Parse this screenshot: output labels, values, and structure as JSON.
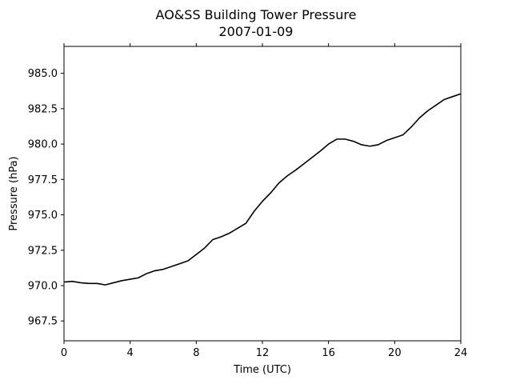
{
  "chart_data": {
    "type": "line",
    "title": "AO&SS Building Tower Pressure",
    "subtitle": "2007-01-09",
    "xlabel": "Time (UTC)",
    "ylabel": "Pressure (hPa)",
    "xlim": [
      0,
      24
    ],
    "ylim": [
      966.1,
      986.9
    ],
    "xticks": [
      0,
      4,
      8,
      12,
      16,
      20,
      24
    ],
    "yticks": [
      967.5,
      970.0,
      972.5,
      975.0,
      977.5,
      980.0,
      982.5,
      985.0
    ],
    "ytick_labels": [
      "967.5",
      "970.0",
      "972.5",
      "975.0",
      "977.5",
      "980.0",
      "982.5",
      "985.0"
    ],
    "grid": false,
    "series": [
      {
        "color": "#000000",
        "x": [
          0,
          0.5,
          1,
          1.5,
          2,
          2.5,
          3,
          3.5,
          4,
          4.5,
          5,
          5.5,
          6,
          6.5,
          7,
          7.5,
          8,
          8.5,
          9,
          9.5,
          10,
          10.5,
          11,
          11.5,
          12,
          12.5,
          13,
          13.5,
          14,
          14.5,
          15,
          15.5,
          16,
          16.5,
          17,
          17.5,
          18,
          18.5,
          19,
          19.5,
          20,
          20.5,
          21,
          21.5,
          22,
          22.5,
          23,
          23.5,
          24
        ],
        "y": [
          970.25,
          970.3,
          970.2,
          970.15,
          970.15,
          970.05,
          970.2,
          970.35,
          970.45,
          970.55,
          970.85,
          971.05,
          971.15,
          971.35,
          971.55,
          971.75,
          972.2,
          972.65,
          973.25,
          973.45,
          973.7,
          974.05,
          974.4,
          975.25,
          975.95,
          976.55,
          977.25,
          977.75,
          978.15,
          978.6,
          979.05,
          979.5,
          980.0,
          980.35,
          980.35,
          980.2,
          979.95,
          979.85,
          979.95,
          980.25,
          980.45,
          980.65,
          981.2,
          981.85,
          982.35,
          982.75,
          983.15,
          983.35,
          983.55
        ]
      }
    ]
  }
}
